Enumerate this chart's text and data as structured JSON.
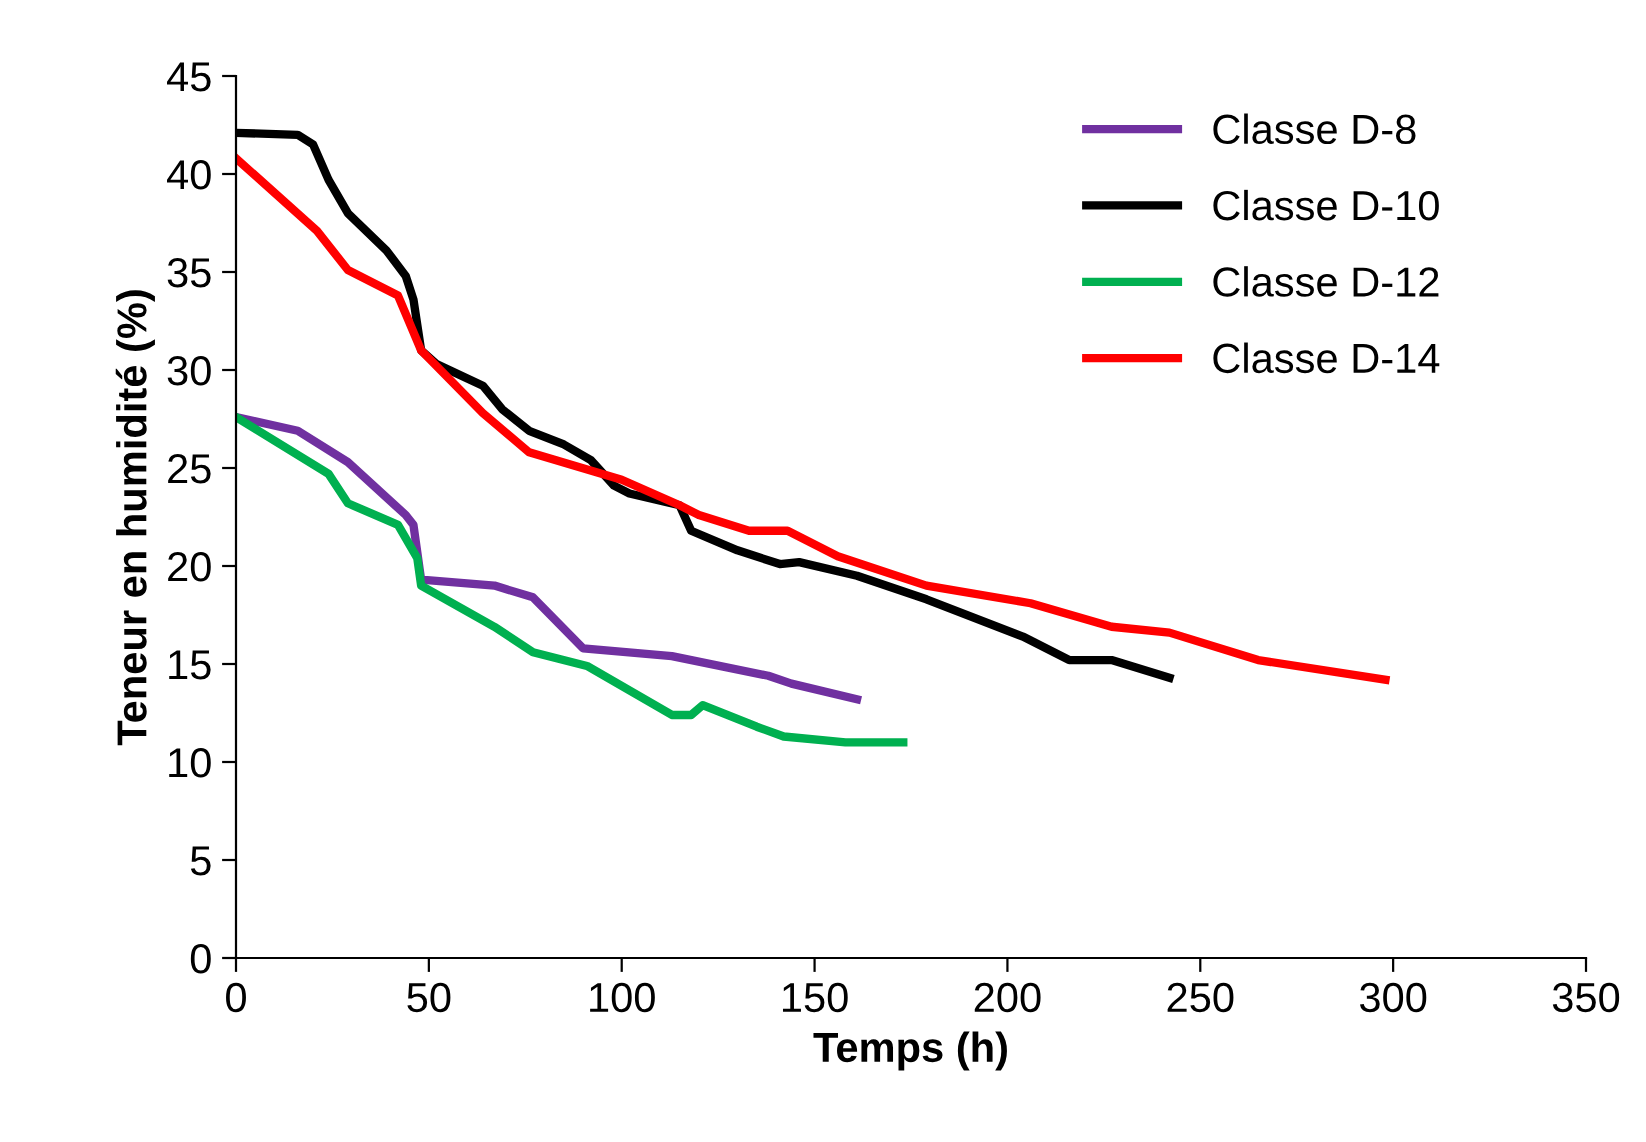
{
  "chart_data": {
    "type": "line",
    "xlabel": "Temps (h)",
    "ylabel": "Teneur en humidité (%)",
    "xlim": [
      0,
      350
    ],
    "xticks": [
      0,
      50,
      100,
      150,
      200,
      250,
      300,
      350
    ],
    "ylim": [
      0,
      45
    ],
    "yticks": [
      0,
      5,
      10,
      15,
      20,
      25,
      30,
      35,
      40,
      45
    ],
    "grid": false,
    "legend": "top right",
    "marker": "none",
    "line_style": "solid",
    "series": [
      {
        "name": "Classe D-8",
        "color": "#7030a0",
        "x": [
          0,
          16,
          29,
          44,
          46,
          48,
          67,
          77,
          90,
          113,
          138,
          144,
          161
        ],
        "values": [
          27.6,
          26.9,
          25.3,
          22.6,
          22.1,
          19.3,
          19.0,
          18.4,
          15.8,
          15.4,
          14.4,
          14.0,
          13.2
        ]
      },
      {
        "name": "Classe D-10",
        "color": "#000000",
        "x": [
          0,
          16,
          20,
          24,
          29,
          39,
          44,
          46,
          48,
          52,
          64,
          69,
          76,
          85,
          92,
          98,
          102,
          115,
          118,
          130,
          141,
          146,
          161,
          179,
          204,
          216,
          227,
          242
        ],
        "values": [
          42.1,
          42.0,
          41.5,
          39.7,
          38.0,
          36.1,
          34.8,
          33.6,
          31.0,
          30.3,
          29.2,
          28.0,
          26.9,
          26.2,
          25.4,
          24.1,
          23.7,
          23.1,
          21.8,
          20.8,
          20.1,
          20.2,
          19.5,
          18.3,
          16.4,
          15.2,
          15.2,
          14.3
        ]
      },
      {
        "name": "Classe D-12",
        "color": "#00b050",
        "x": [
          0,
          24,
          29,
          42,
          47,
          48,
          67,
          77,
          91,
          113,
          118,
          121,
          135,
          142,
          158,
          173
        ],
        "values": [
          27.6,
          24.7,
          23.2,
          22.1,
          20.4,
          19.0,
          16.9,
          15.6,
          14.9,
          12.4,
          12.4,
          12.9,
          11.8,
          11.3,
          11.0,
          11.0
        ]
      },
      {
        "name": "Classe D-14",
        "color": "#ff0000",
        "x": [
          0,
          21,
          29,
          42,
          48,
          64,
          76,
          100,
          115,
          120,
          133,
          143,
          156,
          179,
          206,
          227,
          242,
          265,
          298
        ],
        "values": [
          40.8,
          37.1,
          35.1,
          33.8,
          31.0,
          27.8,
          25.8,
          24.4,
          23.1,
          22.6,
          21.8,
          21.8,
          20.5,
          19.0,
          18.1,
          16.9,
          16.6,
          15.2,
          14.2
        ]
      }
    ]
  }
}
